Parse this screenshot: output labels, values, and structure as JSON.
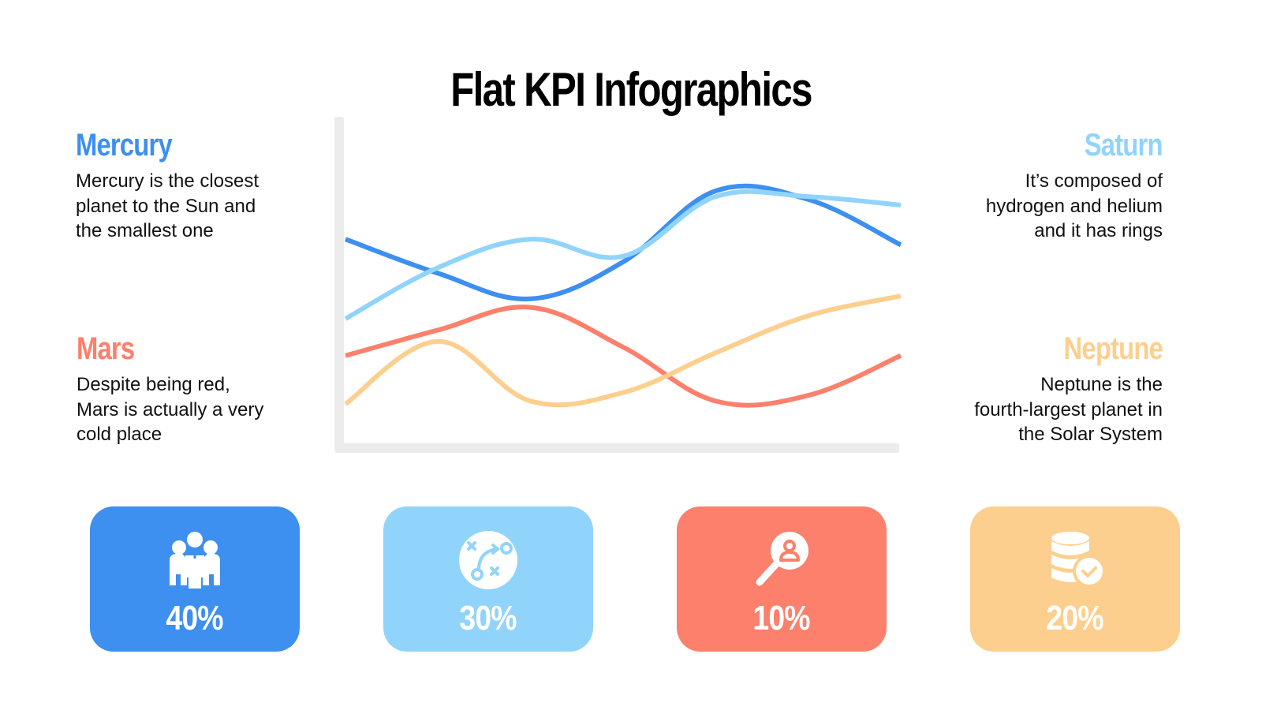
{
  "title": "Flat KPI Infographics",
  "colors": {
    "mercury": "#3d8ff0",
    "saturn": "#91d4fb",
    "mars": "#fc806b",
    "neptune": "#fdcf8e",
    "axis": "#ececec"
  },
  "blocks": {
    "mercury": {
      "heading": "Mercury",
      "text_lines": [
        "Mercury is the closest",
        "planet to the Sun and",
        "the smallest one"
      ]
    },
    "mars": {
      "heading": "Mars",
      "text_lines": [
        "Despite being red,",
        "Mars is actually a very",
        "cold place"
      ]
    },
    "saturn": {
      "heading": "Saturn",
      "text_lines": [
        "It’s composed of",
        "hydrogen and helium",
        "and it has rings"
      ]
    },
    "neptune": {
      "heading": "Neptune",
      "text_lines": [
        "Neptune is the",
        "fourth-largest planet in",
        "the Solar System"
      ]
    }
  },
  "cards": [
    {
      "value": "40%",
      "icon": "team-icon",
      "color": "#3d8ff0"
    },
    {
      "value": "30%",
      "icon": "strategy-icon",
      "color": "#91d4fb"
    },
    {
      "value": "10%",
      "icon": "search-user-icon",
      "color": "#fc806b"
    },
    {
      "value": "20%",
      "icon": "database-check-icon",
      "color": "#fdcf8e"
    }
  ],
  "chart_data": {
    "type": "line",
    "title": "",
    "xlabel": "",
    "ylabel": "",
    "grid": false,
    "legend": "none (series identified by colored side headings)",
    "x": [
      0,
      1,
      2,
      3,
      4,
      5,
      6
    ],
    "ylim": [
      0,
      100
    ],
    "series": [
      {
        "name": "Mercury",
        "color": "#3d8ff0",
        "values": [
          68,
          56,
          47,
          60,
          85,
          82,
          66
        ]
      },
      {
        "name": "Saturn",
        "color": "#91d4fb",
        "values": [
          40,
          58,
          68,
          62,
          83,
          83,
          80
        ]
      },
      {
        "name": "Mars",
        "color": "#fc806b",
        "values": [
          27,
          36,
          44,
          30,
          11,
          13,
          27
        ]
      },
      {
        "name": "Neptune",
        "color": "#fdcf8e",
        "values": [
          10,
          32,
          11,
          14,
          28,
          41,
          48
        ]
      }
    ]
  }
}
